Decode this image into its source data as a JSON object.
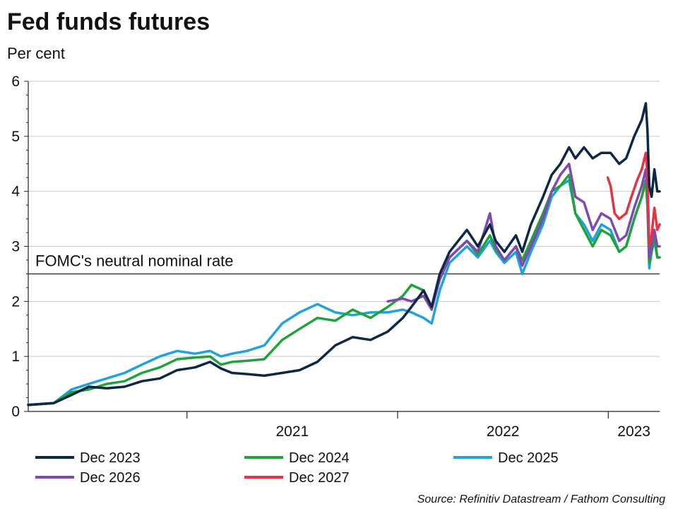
{
  "colors": {
    "dec2023": "#0d2845",
    "dec2024": "#1fa33a",
    "dec2025": "#22a2dc",
    "dec2026": "#7e4ab2",
    "dec2027": "#e53343",
    "grid": "#c9c9c9",
    "axis": "#222222"
  },
  "chart_data": {
    "type": "line",
    "title": "Fed funds futures",
    "ylabel": "Per cent",
    "ylim": [
      0,
      6
    ],
    "yticks": [
      0,
      1,
      2,
      3,
      4,
      5,
      6
    ],
    "xlim": [
      "2020-04-01",
      "2023-03-31"
    ],
    "xtick_labels": [
      {
        "label": "2021",
        "date": "2021-01-01"
      },
      {
        "label": "2022",
        "date": "2022-01-01"
      },
      {
        "label": "2023",
        "date": "2023-01-01"
      }
    ],
    "year_boundaries": [
      "2021-01-01",
      "2022-01-01",
      "2023-01-01"
    ],
    "grid": "horizontal",
    "legend_position": "bottom",
    "reference_line": {
      "y": 2.5,
      "label": "FOMC's neutral nominal rate"
    },
    "source": "Source: Refinitiv Datastream / Fathom Consulting",
    "series": [
      {
        "key": "dec2023",
        "name": "Dec 2023",
        "points": [
          [
            "2020-04-01",
            0.12
          ],
          [
            "2020-05-15",
            0.15
          ],
          [
            "2020-06-15",
            0.3
          ],
          [
            "2020-07-15",
            0.45
          ],
          [
            "2020-08-15",
            0.42
          ],
          [
            "2020-09-15",
            0.45
          ],
          [
            "2020-10-15",
            0.55
          ],
          [
            "2020-11-15",
            0.6
          ],
          [
            "2020-12-15",
            0.75
          ],
          [
            "2021-01-15",
            0.8
          ],
          [
            "2021-02-10",
            0.9
          ],
          [
            "2021-03-01",
            0.78
          ],
          [
            "2021-03-20",
            0.7
          ],
          [
            "2021-04-15",
            0.68
          ],
          [
            "2021-05-15",
            0.65
          ],
          [
            "2021-06-15",
            0.7
          ],
          [
            "2021-07-15",
            0.75
          ],
          [
            "2021-08-15",
            0.9
          ],
          [
            "2021-09-15",
            1.2
          ],
          [
            "2021-10-15",
            1.35
          ],
          [
            "2021-11-15",
            1.3
          ],
          [
            "2021-12-15",
            1.45
          ],
          [
            "2022-01-10",
            1.7
          ],
          [
            "2022-01-25",
            1.9
          ],
          [
            "2022-02-15",
            2.2
          ],
          [
            "2022-03-01",
            1.9
          ],
          [
            "2022-03-15",
            2.5
          ],
          [
            "2022-04-01",
            2.9
          ],
          [
            "2022-05-01",
            3.3
          ],
          [
            "2022-05-20",
            3.0
          ],
          [
            "2022-06-10",
            3.4
          ],
          [
            "2022-06-20",
            3.1
          ],
          [
            "2022-07-05",
            2.9
          ],
          [
            "2022-07-25",
            3.2
          ],
          [
            "2022-08-05",
            2.9
          ],
          [
            "2022-08-20",
            3.4
          ],
          [
            "2022-09-10",
            3.9
          ],
          [
            "2022-09-25",
            4.3
          ],
          [
            "2022-10-10",
            4.5
          ],
          [
            "2022-10-25",
            4.8
          ],
          [
            "2022-11-05",
            4.6
          ],
          [
            "2022-11-20",
            4.8
          ],
          [
            "2022-12-05",
            4.6
          ],
          [
            "2022-12-20",
            4.7
          ],
          [
            "2023-01-05",
            4.7
          ],
          [
            "2023-01-20",
            4.5
          ],
          [
            "2023-02-01",
            4.6
          ],
          [
            "2023-02-15",
            5.0
          ],
          [
            "2023-02-28",
            5.3
          ],
          [
            "2023-03-07",
            5.6
          ],
          [
            "2023-03-10",
            5.1
          ],
          [
            "2023-03-13",
            4.1
          ],
          [
            "2023-03-17",
            3.9
          ],
          [
            "2023-03-22",
            4.4
          ],
          [
            "2023-03-27",
            4.0
          ],
          [
            "2023-03-31",
            4.0
          ]
        ]
      },
      {
        "key": "dec2024",
        "name": "Dec 2024",
        "points": [
          [
            "2020-04-01",
            0.12
          ],
          [
            "2020-05-15",
            0.15
          ],
          [
            "2020-06-15",
            0.35
          ],
          [
            "2020-07-15",
            0.4
          ],
          [
            "2020-08-15",
            0.5
          ],
          [
            "2020-09-15",
            0.55
          ],
          [
            "2020-10-15",
            0.7
          ],
          [
            "2020-11-15",
            0.8
          ],
          [
            "2020-12-15",
            0.95
          ],
          [
            "2021-01-15",
            0.98
          ],
          [
            "2021-02-10",
            1.0
          ],
          [
            "2021-03-01",
            0.85
          ],
          [
            "2021-03-20",
            0.9
          ],
          [
            "2021-04-15",
            0.92
          ],
          [
            "2021-05-15",
            0.95
          ],
          [
            "2021-06-15",
            1.3
          ],
          [
            "2021-07-15",
            1.5
          ],
          [
            "2021-08-15",
            1.7
          ],
          [
            "2021-09-15",
            1.65
          ],
          [
            "2021-10-15",
            1.85
          ],
          [
            "2021-11-15",
            1.7
          ],
          [
            "2021-12-15",
            1.9
          ],
          [
            "2022-01-10",
            2.1
          ],
          [
            "2022-01-25",
            2.3
          ],
          [
            "2022-02-15",
            2.2
          ],
          [
            "2022-03-01",
            1.9
          ],
          [
            "2022-03-15",
            2.4
          ],
          [
            "2022-04-01",
            2.8
          ],
          [
            "2022-05-01",
            3.1
          ],
          [
            "2022-05-20",
            2.85
          ],
          [
            "2022-06-10",
            3.2
          ],
          [
            "2022-06-20",
            2.95
          ],
          [
            "2022-07-05",
            2.75
          ],
          [
            "2022-07-25",
            3.0
          ],
          [
            "2022-08-05",
            2.75
          ],
          [
            "2022-08-20",
            3.1
          ],
          [
            "2022-09-10",
            3.6
          ],
          [
            "2022-09-25",
            4.0
          ],
          [
            "2022-10-10",
            4.1
          ],
          [
            "2022-10-25",
            4.3
          ],
          [
            "2022-11-05",
            3.6
          ],
          [
            "2022-11-20",
            3.3
          ],
          [
            "2022-12-05",
            3.0
          ],
          [
            "2022-12-20",
            3.3
          ],
          [
            "2023-01-05",
            3.2
          ],
          [
            "2023-01-20",
            2.9
          ],
          [
            "2023-02-01",
            3.0
          ],
          [
            "2023-02-15",
            3.5
          ],
          [
            "2023-02-28",
            3.9
          ],
          [
            "2023-03-07",
            4.2
          ],
          [
            "2023-03-10",
            3.8
          ],
          [
            "2023-03-13",
            2.7
          ],
          [
            "2023-03-17",
            2.9
          ],
          [
            "2023-03-22",
            3.2
          ],
          [
            "2023-03-27",
            2.8
          ],
          [
            "2023-03-31",
            2.8
          ]
        ]
      },
      {
        "key": "dec2025",
        "name": "Dec 2025",
        "points": [
          [
            "2020-04-01",
            0.12
          ],
          [
            "2020-05-15",
            0.15
          ],
          [
            "2020-06-15",
            0.4
          ],
          [
            "2020-07-15",
            0.5
          ],
          [
            "2020-08-15",
            0.6
          ],
          [
            "2020-09-15",
            0.7
          ],
          [
            "2020-10-15",
            0.85
          ],
          [
            "2020-11-15",
            1.0
          ],
          [
            "2020-12-15",
            1.1
          ],
          [
            "2021-01-15",
            1.05
          ],
          [
            "2021-02-10",
            1.1
          ],
          [
            "2021-03-01",
            1.0
          ],
          [
            "2021-03-20",
            1.05
          ],
          [
            "2021-04-15",
            1.1
          ],
          [
            "2021-05-15",
            1.2
          ],
          [
            "2021-06-15",
            1.6
          ],
          [
            "2021-07-15",
            1.8
          ],
          [
            "2021-08-15",
            1.95
          ],
          [
            "2021-09-15",
            1.8
          ],
          [
            "2021-10-15",
            1.75
          ],
          [
            "2021-11-15",
            1.8
          ],
          [
            "2021-12-15",
            1.8
          ],
          [
            "2022-01-10",
            1.85
          ],
          [
            "2022-01-25",
            1.8
          ],
          [
            "2022-02-15",
            1.7
          ],
          [
            "2022-03-01",
            1.6
          ],
          [
            "2022-03-15",
            2.2
          ],
          [
            "2022-04-01",
            2.7
          ],
          [
            "2022-05-01",
            3.0
          ],
          [
            "2022-05-20",
            2.8
          ],
          [
            "2022-06-10",
            3.1
          ],
          [
            "2022-06-20",
            2.9
          ],
          [
            "2022-07-05",
            2.7
          ],
          [
            "2022-07-25",
            2.9
          ],
          [
            "2022-08-05",
            2.5
          ],
          [
            "2022-08-20",
            2.9
          ],
          [
            "2022-09-10",
            3.4
          ],
          [
            "2022-09-25",
            3.9
          ],
          [
            "2022-10-10",
            4.1
          ],
          [
            "2022-10-25",
            4.2
          ],
          [
            "2022-11-05",
            3.6
          ],
          [
            "2022-11-20",
            3.4
          ],
          [
            "2022-12-05",
            3.1
          ],
          [
            "2022-12-20",
            3.4
          ],
          [
            "2023-01-05",
            3.3
          ],
          [
            "2023-01-20",
            2.9
          ],
          [
            "2023-02-01",
            3.0
          ],
          [
            "2023-02-15",
            3.5
          ],
          [
            "2023-02-28",
            3.9
          ],
          [
            "2023-03-07",
            4.2
          ],
          [
            "2023-03-10",
            3.7
          ],
          [
            "2023-03-13",
            2.6
          ],
          [
            "2023-03-17",
            2.9
          ],
          [
            "2023-03-22",
            3.1
          ],
          [
            "2023-03-27",
            2.8
          ],
          [
            "2023-03-31",
            2.8
          ]
        ]
      },
      {
        "key": "dec2026",
        "name": "Dec 2026",
        "points": [
          [
            "2021-12-15",
            2.0
          ],
          [
            "2022-01-10",
            2.05
          ],
          [
            "2022-01-25",
            2.0
          ],
          [
            "2022-02-15",
            2.1
          ],
          [
            "2022-03-01",
            1.85
          ],
          [
            "2022-03-15",
            2.4
          ],
          [
            "2022-04-01",
            2.8
          ],
          [
            "2022-05-01",
            3.1
          ],
          [
            "2022-05-20",
            2.9
          ],
          [
            "2022-06-10",
            3.6
          ],
          [
            "2022-06-20",
            3.0
          ],
          [
            "2022-07-05",
            2.75
          ],
          [
            "2022-07-25",
            3.0
          ],
          [
            "2022-08-05",
            2.65
          ],
          [
            "2022-08-20",
            3.0
          ],
          [
            "2022-09-10",
            3.5
          ],
          [
            "2022-09-25",
            4.0
          ],
          [
            "2022-10-10",
            4.3
          ],
          [
            "2022-10-25",
            4.5
          ],
          [
            "2022-11-05",
            3.9
          ],
          [
            "2022-11-20",
            3.8
          ],
          [
            "2022-12-05",
            3.3
          ],
          [
            "2022-12-20",
            3.6
          ],
          [
            "2023-01-05",
            3.5
          ],
          [
            "2023-01-20",
            3.1
          ],
          [
            "2023-02-01",
            3.2
          ],
          [
            "2023-02-15",
            3.7
          ],
          [
            "2023-02-28",
            4.1
          ],
          [
            "2023-03-07",
            4.4
          ],
          [
            "2023-03-10",
            4.0
          ],
          [
            "2023-03-13",
            2.8
          ],
          [
            "2023-03-17",
            3.0
          ],
          [
            "2023-03-22",
            3.3
          ],
          [
            "2023-03-27",
            3.0
          ],
          [
            "2023-03-31",
            3.0
          ]
        ]
      },
      {
        "key": "dec2027",
        "name": "Dec 2027",
        "points": [
          [
            "2022-12-31",
            4.25
          ],
          [
            "2023-01-05",
            4.1
          ],
          [
            "2023-01-12",
            3.6
          ],
          [
            "2023-01-20",
            3.5
          ],
          [
            "2023-02-01",
            3.6
          ],
          [
            "2023-02-10",
            3.9
          ],
          [
            "2023-02-20",
            4.2
          ],
          [
            "2023-02-28",
            4.4
          ],
          [
            "2023-03-07",
            4.7
          ],
          [
            "2023-03-10",
            4.3
          ],
          [
            "2023-03-13",
            3.0
          ],
          [
            "2023-03-17",
            3.2
          ],
          [
            "2023-03-22",
            3.7
          ],
          [
            "2023-03-27",
            3.3
          ],
          [
            "2023-03-31",
            3.4
          ]
        ]
      }
    ]
  }
}
